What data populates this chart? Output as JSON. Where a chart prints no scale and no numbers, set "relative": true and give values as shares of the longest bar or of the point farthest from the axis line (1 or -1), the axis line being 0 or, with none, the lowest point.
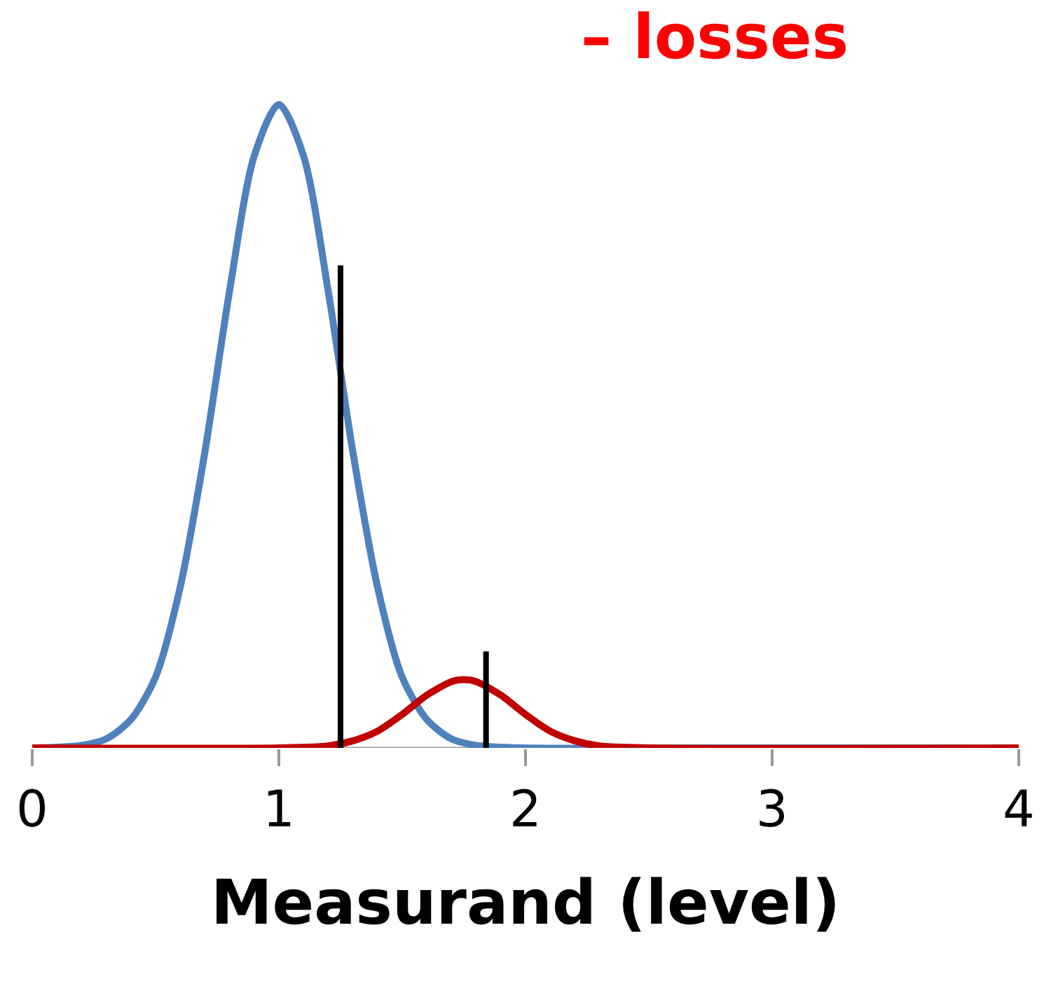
{
  "chart_data": {
    "type": "line",
    "title": "– losses",
    "xlabel": "Measurand (level)",
    "relative": true,
    "xlim": [
      0,
      4
    ],
    "xticks": [
      0,
      1,
      2,
      3,
      4
    ],
    "tick_labels": "x",
    "grid": false,
    "marker": "none",
    "line_style": "solid",
    "series": [
      {
        "color": "#4f81bd",
        "x": [
          0,
          0.2,
          0.3,
          0.4,
          0.5,
          0.6,
          0.7,
          0.8,
          0.9,
          1.0,
          1.1,
          1.2,
          1.3,
          1.4,
          1.5,
          1.6,
          1.7,
          1.8,
          2.0,
          2.5,
          4
        ],
        "values": [
          0,
          0.004,
          0.014,
          0.044,
          0.11,
          0.25,
          0.46,
          0.71,
          0.92,
          1,
          0.92,
          0.71,
          0.46,
          0.25,
          0.11,
          0.044,
          0.014,
          0.004,
          0,
          0,
          0
        ]
      },
      {
        "color": "#c00000",
        "x": [
          0,
          1.0,
          1.2,
          1.3,
          1.4,
          1.5,
          1.6,
          1.7,
          1.75,
          1.8,
          1.9,
          2.0,
          2.1,
          2.2,
          2.3,
          2.5,
          4
        ],
        "values": [
          0,
          0,
          0.003,
          0.011,
          0.026,
          0.052,
          0.082,
          0.103,
          0.106,
          0.103,
          0.082,
          0.052,
          0.026,
          0.011,
          0.003,
          0,
          0
        ]
      },
      {
        "color": "#000000",
        "x": [
          1.25,
          1.25
        ],
        "values": [
          0,
          0.75
        ]
      },
      {
        "color": "#000000",
        "x": [
          1.84,
          1.84
        ],
        "values": [
          0,
          0.15
        ]
      }
    ]
  }
}
